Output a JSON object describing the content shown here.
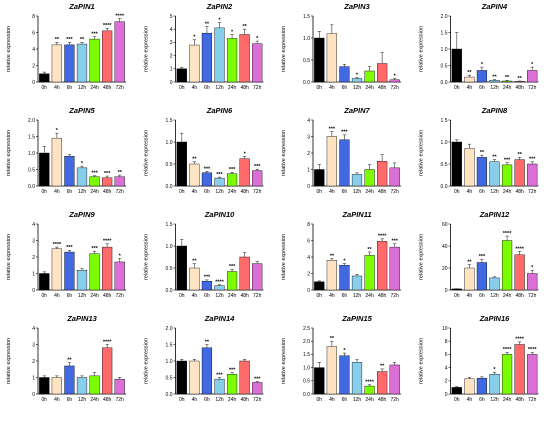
{
  "figure": {
    "colors": [
      "#000000",
      "#ffe4c4",
      "#4169e1",
      "#87ceeb",
      "#7cfc00",
      "#ff6b6b",
      "#da70d6"
    ],
    "error_bar_color": "#333333"
  },
  "chart_data": [
    {
      "type": "bar",
      "title": "ZaPIN1",
      "ylabel": "relative expression",
      "categories": [
        "0h",
        "4h",
        "6h",
        "12h",
        "24h",
        "48h",
        "72h"
      ],
      "values": [
        1.0,
        4.5,
        4.5,
        4.6,
        5.2,
        6.2,
        7.3
      ],
      "errors": [
        0.2,
        0.3,
        0.3,
        0.2,
        0.3,
        0.3,
        0.4
      ],
      "ylim": [
        0,
        8
      ],
      "yticks": [
        "0",
        "2",
        "4",
        "6",
        "8"
      ],
      "significance": [
        "",
        "**",
        "***",
        "**",
        "***",
        "****",
        "****"
      ]
    },
    {
      "type": "bar",
      "title": "ZaPIN2",
      "ylabel": "relative expression",
      "categories": [
        "0h",
        "4h",
        "6h",
        "12h",
        "24h",
        "48h",
        "72h"
      ],
      "values": [
        1.0,
        2.8,
        3.7,
        4.1,
        3.3,
        3.6,
        2.9
      ],
      "errors": [
        0.1,
        0.4,
        0.5,
        0.4,
        0.3,
        0.4,
        0.2
      ],
      "ylim": [
        0,
        5
      ],
      "yticks": [
        "0",
        "1",
        "2",
        "3",
        "4",
        "5"
      ],
      "significance": [
        "",
        "*",
        "**",
        "*",
        "*",
        "**",
        "*"
      ]
    },
    {
      "type": "bar",
      "title": "ZaPIN3",
      "ylabel": "relative expression",
      "categories": [
        "0h",
        "4h",
        "6h",
        "12h",
        "24h",
        "48h",
        "72h"
      ],
      "values": [
        1.0,
        1.1,
        0.35,
        0.08,
        0.25,
        0.42,
        0.05
      ],
      "errors": [
        0.15,
        0.2,
        0.05,
        0.02,
        0.1,
        0.25,
        0.03
      ],
      "ylim": [
        0,
        1.5
      ],
      "yticks": [
        "0.0",
        "0.5",
        "1.0",
        "1.5"
      ],
      "significance": [
        "",
        "",
        "",
        "*",
        "",
        "",
        "*"
      ]
    },
    {
      "type": "bar",
      "title": "ZaPIN4",
      "ylabel": "relative expression",
      "categories": [
        "0h",
        "4h",
        "6h",
        "12h",
        "24h",
        "48h",
        "72h"
      ],
      "values": [
        1.0,
        0.15,
        0.35,
        0.05,
        0.03,
        0.02,
        0.35
      ],
      "errors": [
        0.5,
        0.05,
        0.1,
        0.02,
        0.02,
        0.01,
        0.1
      ],
      "ylim": [
        0,
        2
      ],
      "yticks": [
        "0.0",
        "0.5",
        "1.0",
        "1.5",
        "2.0"
      ],
      "significance": [
        "",
        "**",
        "*",
        "**",
        "**",
        "**",
        "*"
      ]
    },
    {
      "type": "bar",
      "title": "ZaPIN5",
      "ylabel": "relative expression",
      "categories": [
        "0h",
        "4h",
        "6h",
        "12h",
        "24h",
        "48h",
        "72h"
      ],
      "values": [
        1.0,
        1.45,
        0.9,
        0.55,
        0.28,
        0.25,
        0.28
      ],
      "errors": [
        0.2,
        0.15,
        0.05,
        0.05,
        0.03,
        0.05,
        0.05
      ],
      "ylim": [
        0,
        2
      ],
      "yticks": [
        "0.0",
        "0.5",
        "1.0",
        "1.5",
        "2.0"
      ],
      "significance": [
        "",
        "*",
        "",
        "*",
        "***",
        "***",
        "**"
      ]
    },
    {
      "type": "bar",
      "title": "ZaPIN6",
      "ylabel": "relative expression",
      "categories": [
        "0h",
        "4h",
        "6h",
        "12h",
        "24h",
        "48h",
        "72h"
      ],
      "values": [
        1.0,
        0.5,
        0.3,
        0.18,
        0.28,
        0.62,
        0.35
      ],
      "errors": [
        0.2,
        0.05,
        0.03,
        0.02,
        0.03,
        0.05,
        0.03
      ],
      "ylim": [
        0,
        1.5
      ],
      "yticks": [
        "0.0",
        "0.5",
        "1.0",
        "1.5"
      ],
      "significance": [
        "",
        "**",
        "***",
        "***",
        "***",
        "*",
        "***"
      ]
    },
    {
      "type": "bar",
      "title": "ZaPIN7",
      "ylabel": "relative expression",
      "categories": [
        "0h",
        "4h",
        "6h",
        "12h",
        "24h",
        "48h",
        "72h"
      ],
      "values": [
        1.0,
        3.0,
        2.8,
        0.7,
        1.0,
        1.5,
        1.1
      ],
      "errors": [
        0.3,
        0.3,
        0.3,
        0.1,
        0.3,
        0.4,
        0.3
      ],
      "ylim": [
        0,
        4
      ],
      "yticks": [
        "0",
        "1",
        "2",
        "3",
        "4"
      ],
      "significance": [
        "",
        "***",
        "***",
        "",
        "",
        "",
        ""
      ]
    },
    {
      "type": "bar",
      "title": "ZaPIN8",
      "ylabel": "relative expression",
      "categories": [
        "0h",
        "4h",
        "6h",
        "12h",
        "24h",
        "48h",
        "72h"
      ],
      "values": [
        1.0,
        0.85,
        0.65,
        0.55,
        0.48,
        0.6,
        0.5
      ],
      "errors": [
        0.05,
        0.1,
        0.05,
        0.05,
        0.05,
        0.05,
        0.05
      ],
      "ylim": [
        0,
        1.5
      ],
      "yticks": [
        "0.0",
        "0.5",
        "1.0",
        "1.5"
      ],
      "significance": [
        "",
        "",
        "**",
        "**",
        "***",
        "**",
        "***"
      ]
    },
    {
      "type": "bar",
      "title": "ZaPIN9",
      "ylabel": "relative expression",
      "categories": [
        "0h",
        "4h",
        "6h",
        "12h",
        "24h",
        "48h",
        "72h"
      ],
      "values": [
        1.0,
        2.5,
        2.3,
        1.2,
        2.2,
        2.6,
        1.7
      ],
      "errors": [
        0.1,
        0.1,
        0.1,
        0.1,
        0.15,
        0.2,
        0.2
      ],
      "ylim": [
        0,
        4
      ],
      "yticks": [
        "0",
        "1",
        "2",
        "3",
        "4"
      ],
      "significance": [
        "",
        "****",
        "***",
        "",
        "***",
        "****",
        "*"
      ]
    },
    {
      "type": "bar",
      "title": "ZaPIN10",
      "ylabel": "relative expression",
      "categories": [
        "0h",
        "4h",
        "6h",
        "12h",
        "24h",
        "48h",
        "72h"
      ],
      "values": [
        1.0,
        0.5,
        0.2,
        0.1,
        0.42,
        0.75,
        0.6
      ],
      "errors": [
        0.15,
        0.1,
        0.03,
        0.02,
        0.05,
        0.1,
        0.05
      ],
      "ylim": [
        0,
        1.5
      ],
      "yticks": [
        "0.0",
        "0.5",
        "1.0",
        "1.5"
      ],
      "significance": [
        "",
        "**",
        "***",
        "****",
        "***",
        "",
        ""
      ]
    },
    {
      "type": "bar",
      "title": "ZaPIN11",
      "ylabel": "relative expression",
      "categories": [
        "0h",
        "4h",
        "6h",
        "12h",
        "24h",
        "48h",
        "72h"
      ],
      "values": [
        1.0,
        3.6,
        3.0,
        1.7,
        4.2,
        5.9,
        5.2
      ],
      "errors": [
        0.1,
        0.2,
        0.2,
        0.2,
        0.4,
        0.3,
        0.4
      ],
      "ylim": [
        0,
        8
      ],
      "yticks": [
        "0",
        "2",
        "4",
        "6",
        "8"
      ],
      "significance": [
        "",
        "**",
        "*",
        "",
        "**",
        "****",
        "***"
      ]
    },
    {
      "type": "bar",
      "title": "ZaPIN12",
      "ylabel": "relative expression",
      "categories": [
        "0h",
        "4h",
        "6h",
        "12h",
        "24h",
        "48h",
        "72h"
      ],
      "values": [
        1.0,
        20,
        25,
        11,
        45,
        32,
        15
      ],
      "errors": [
        0.2,
        3,
        3,
        1,
        4,
        3,
        3
      ],
      "ylim": [
        0,
        60
      ],
      "yticks": [
        "0",
        "20",
        "40",
        "60"
      ],
      "significance": [
        "",
        "**",
        "***",
        "",
        "****",
        "****",
        "*"
      ]
    },
    {
      "type": "bar",
      "title": "ZaPIN13",
      "ylabel": "relative expression",
      "categories": [
        "0h",
        "4h",
        "6h",
        "12h",
        "24h",
        "48h",
        "72h"
      ],
      "values": [
        1.0,
        1.0,
        1.7,
        1.0,
        1.1,
        2.8,
        0.9
      ],
      "errors": [
        0.1,
        0.1,
        0.2,
        0.1,
        0.2,
        0.2,
        0.1
      ],
      "ylim": [
        0,
        4
      ],
      "yticks": [
        "0",
        "1",
        "2",
        "3",
        "4"
      ],
      "significance": [
        "",
        "",
        "**",
        "",
        "",
        "****",
        ""
      ]
    },
    {
      "type": "bar",
      "title": "ZaPIN14",
      "ylabel": "relative expression",
      "categories": [
        "0h",
        "4h",
        "6h",
        "12h",
        "24h",
        "48h",
        "72h"
      ],
      "values": [
        1.0,
        1.0,
        1.4,
        0.45,
        0.6,
        1.0,
        0.35
      ],
      "errors": [
        0.05,
        0.05,
        0.1,
        0.05,
        0.05,
        0.05,
        0.03
      ],
      "ylim": [
        0,
        2
      ],
      "yticks": [
        "0.0",
        "0.5",
        "1.0",
        "1.5",
        "2.0"
      ],
      "significance": [
        "",
        "",
        "**",
        "***",
        "***",
        "",
        "***"
      ]
    },
    {
      "type": "bar",
      "title": "ZaPIN15",
      "ylabel": "relative expression",
      "categories": [
        "0h",
        "4h",
        "6h",
        "12h",
        "24h",
        "48h",
        "72h"
      ],
      "values": [
        1.0,
        1.8,
        1.45,
        1.2,
        0.3,
        0.85,
        1.1
      ],
      "errors": [
        0.2,
        0.2,
        0.1,
        0.1,
        0.05,
        0.1,
        0.1
      ],
      "ylim": [
        0,
        2.5
      ],
      "yticks": [
        "0.0",
        "0.5",
        "1.0",
        "1.5",
        "2.0",
        "2.5"
      ],
      "significance": [
        "",
        "**",
        "*",
        "",
        "****",
        "**",
        ""
      ]
    },
    {
      "type": "bar",
      "title": "ZaPIN16",
      "ylabel": "relative expression",
      "categories": [
        "0h",
        "4h",
        "6h",
        "12h",
        "24h",
        "48h",
        "72h"
      ],
      "values": [
        1.0,
        2.3,
        2.4,
        3.0,
        6.0,
        7.5,
        6.0
      ],
      "errors": [
        0.1,
        0.2,
        0.2,
        0.3,
        0.3,
        0.4,
        0.3
      ],
      "ylim": [
        0,
        10
      ],
      "yticks": [
        "0",
        "2",
        "4",
        "6",
        "8",
        "10"
      ],
      "significance": [
        "",
        "",
        "",
        "*",
        "****",
        "****",
        "****"
      ]
    }
  ]
}
